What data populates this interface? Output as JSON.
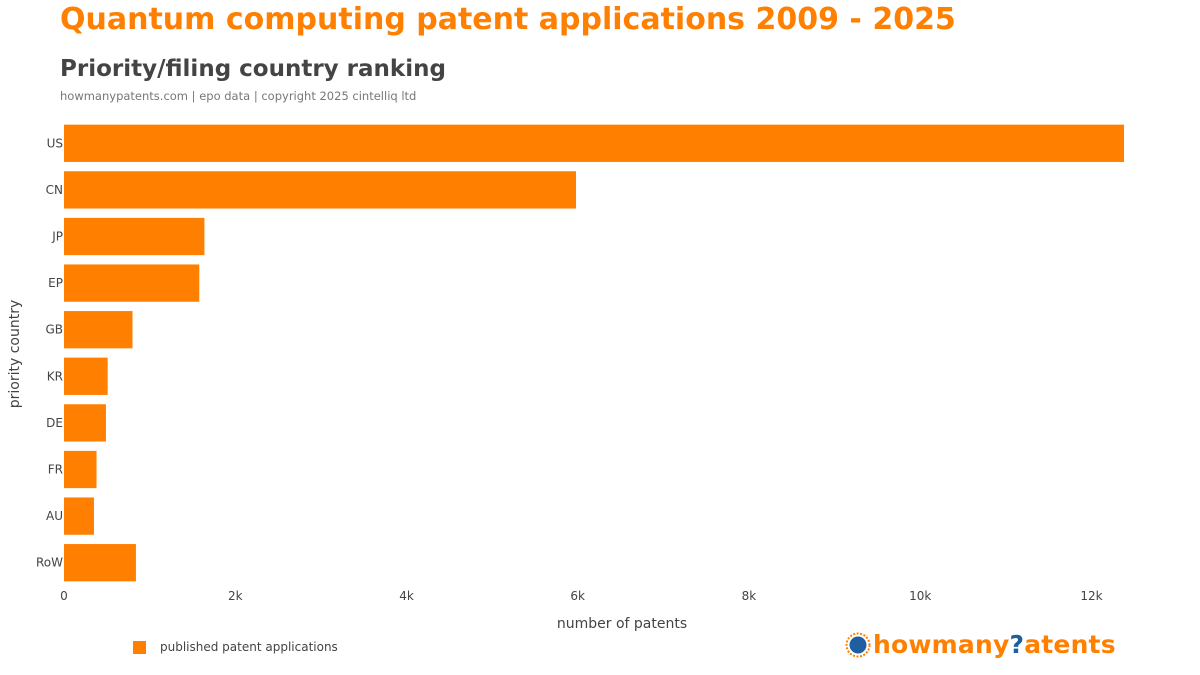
{
  "header": {
    "title": "Quantum computing patent applications 2009 - 2025",
    "subtitle": "Priority/filing country ranking",
    "credit": "howmanypatents.com | epo data | copyright 2025 cintelliq ltd"
  },
  "colors": {
    "bar": "#ff7f00",
    "title": "#ff7f00",
    "axis_text": "#444444",
    "logo_accent": "#1f5fa0"
  },
  "legend": {
    "placement": "bottom-left",
    "label": "published patent applications"
  },
  "logo": {
    "part1": "howmany",
    "part2": "?",
    "part3": "atents"
  },
  "chart_data": {
    "type": "bar",
    "orientation": "horizontal",
    "categories": [
      "US",
      "CN",
      "JP",
      "EP",
      "GB",
      "KR",
      "DE",
      "FR",
      "AU",
      "RoW"
    ],
    "series": [
      {
        "name": "published patent applications",
        "values": [
          12380,
          5980,
          1640,
          1580,
          800,
          510,
          490,
          380,
          350,
          840
        ]
      }
    ],
    "xlabel": "number of patents",
    "ylabel": "priority country",
    "xlim": [
      0,
      12380
    ],
    "xticks": [
      0,
      2000,
      4000,
      6000,
      8000,
      10000,
      12000
    ],
    "xtick_labels": [
      "0",
      "2k",
      "4k",
      "6k",
      "8k",
      "10k",
      "12k"
    ],
    "grid": false
  }
}
